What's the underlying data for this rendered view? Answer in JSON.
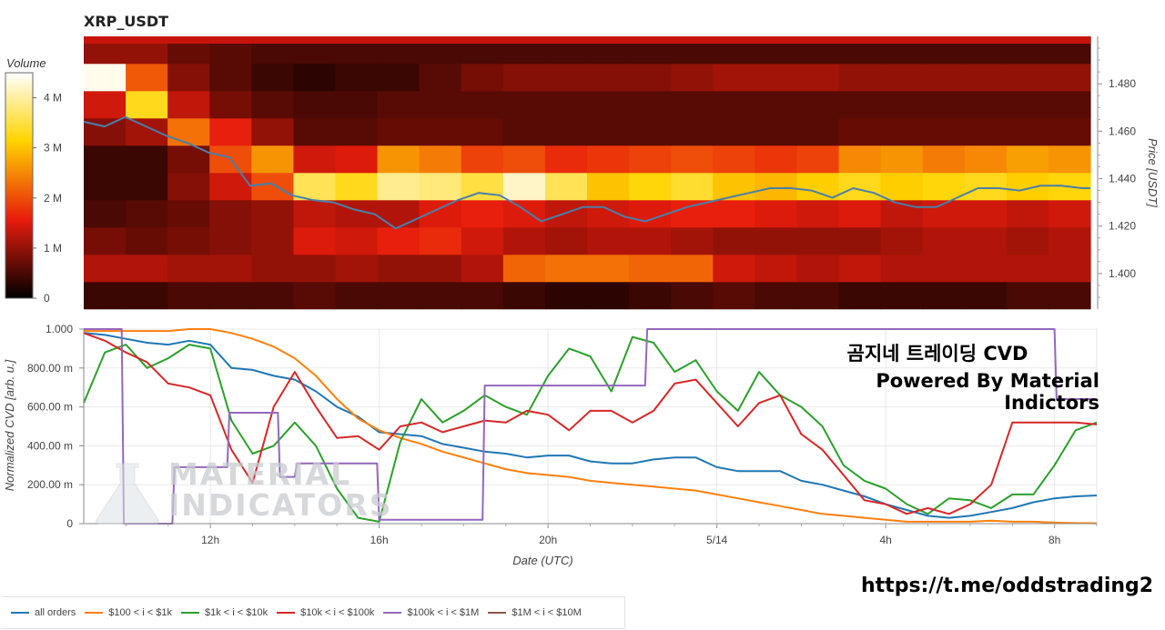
{
  "title": "XRP_USDT",
  "colorbar": {
    "title": "Volume",
    "ticks": [
      "0",
      "1 M",
      "2 M",
      "3 M",
      "4 M"
    ],
    "tick_values": [
      0,
      1000000,
      2000000,
      3000000,
      4000000
    ],
    "range": [
      0,
      4500000
    ]
  },
  "overlay": {
    "line1": "곰지네 트레이딩 CVD",
    "line2": "Powered By Material Indictors",
    "url": "https://t.me/oddstrading2"
  },
  "watermark": {
    "line1": "MATERIAL",
    "line2": "INDICATORS"
  },
  "colors": {
    "all_orders": "#1f77b4",
    "b100_1k": "#ff7f0e",
    "b1k_10k": "#2ca02c",
    "b10k_100k": "#d62728",
    "b100k_1m": "#9467bd",
    "b1m_10m": "#8c564b",
    "price_line": "#4a7fa8"
  },
  "chart_data": [
    {
      "type": "heatmap",
      "title": "XRP_USDT",
      "ylabel": "Price [USDT]",
      "yticks": [
        "1.400",
        "1.420",
        "1.440",
        "1.460",
        "1.480"
      ],
      "ytick_values": [
        1.4,
        1.42,
        1.44,
        1.46,
        1.48
      ],
      "ylim": [
        1.385,
        1.5
      ],
      "xlim_hours": [
        8.3,
        32.5
      ],
      "price_levels": [
        1.395,
        1.405,
        1.415,
        1.425,
        1.435,
        1.445,
        1.455,
        1.465,
        1.475,
        1.485
      ],
      "volume_profile_M": [
        [
          0.4,
          0.4,
          0.5,
          0.5,
          0.5,
          0.6,
          0.5,
          0.5,
          0.5,
          0.5,
          0.4,
          0.3,
          0.3,
          0.4,
          0.5,
          0.6,
          0.5,
          0.5,
          0.4,
          0.4,
          0.4,
          0.4,
          0.5,
          0.5
        ],
        [
          1.2,
          1.2,
          1.1,
          1.1,
          1.0,
          1.0,
          1.1,
          1.0,
          1.0,
          1.2,
          2.2,
          2.3,
          2.3,
          2.2,
          2.2,
          1.4,
          1.3,
          1.2,
          1.3,
          1.2,
          1.2,
          1.2,
          1.2,
          1.2
        ],
        [
          0.8,
          0.7,
          0.8,
          0.9,
          1.0,
          1.5,
          1.4,
          1.6,
          1.7,
          1.4,
          1.2,
          1.1,
          1.2,
          1.2,
          1.1,
          1.0,
          1.0,
          1.0,
          1.0,
          1.1,
          1.2,
          1.2,
          1.1,
          1.2
        ],
        [
          0.5,
          0.6,
          0.7,
          0.9,
          1.0,
          1.3,
          1.2,
          1.2,
          1.5,
          1.6,
          1.5,
          1.3,
          1.4,
          1.5,
          1.6,
          1.6,
          1.5,
          1.4,
          1.5,
          1.3,
          1.4,
          1.4,
          1.3,
          1.4
        ],
        [
          0.4,
          0.4,
          0.9,
          1.4,
          2.0,
          3.6,
          3.3,
          3.9,
          3.8,
          3.5,
          4.2,
          3.6,
          3.0,
          3.2,
          3.4,
          3.0,
          2.9,
          3.1,
          3.3,
          3.1,
          3.2,
          3.3,
          3.1,
          3.2
        ],
        [
          0.4,
          0.4,
          0.8,
          2.0,
          2.6,
          1.4,
          1.5,
          2.6,
          2.4,
          1.9,
          2.0,
          1.7,
          1.8,
          1.9,
          2.0,
          1.9,
          1.8,
          1.9,
          2.5,
          2.6,
          2.4,
          2.5,
          2.7,
          2.6
        ],
        [
          0.9,
          1.1,
          2.3,
          1.6,
          1.0,
          0.6,
          0.6,
          0.7,
          0.7,
          0.7,
          0.6,
          0.6,
          0.6,
          0.6,
          0.6,
          0.6,
          0.6,
          0.6,
          0.7,
          0.7,
          0.7,
          0.7,
          0.7,
          0.7
        ],
        [
          1.4,
          3.3,
          1.3,
          0.8,
          0.6,
          0.5,
          0.5,
          0.6,
          0.6,
          0.6,
          0.6,
          0.6,
          0.6,
          0.6,
          0.6,
          0.6,
          0.6,
          0.6,
          0.6,
          0.6,
          0.6,
          0.6,
          0.6,
          0.6
        ],
        [
          4.4,
          2.1,
          0.9,
          0.6,
          0.4,
          0.3,
          0.4,
          0.4,
          0.6,
          0.8,
          0.9,
          0.9,
          0.9,
          0.9,
          1.0,
          1.1,
          1.1,
          1.1,
          1.0,
          1.0,
          1.0,
          1.0,
          1.0,
          1.0
        ],
        [
          1.0,
          1.0,
          0.7,
          0.6,
          0.5,
          0.5,
          0.5,
          0.5,
          0.5,
          0.5,
          0.5,
          0.5,
          0.5,
          0.5,
          0.5,
          0.5,
          0.5,
          0.5,
          0.5,
          0.5,
          0.5,
          0.5,
          0.5,
          0.5
        ]
      ],
      "price_series": {
        "name": "",
        "x_hours": [
          8.3,
          8.8,
          9.3,
          9.8,
          10.3,
          10.8,
          11.3,
          11.8,
          12.3,
          12.8,
          13.3,
          13.8,
          14.3,
          14.8,
          15.3,
          15.8,
          16.3,
          16.8,
          17.3,
          17.8,
          18.3,
          18.8,
          19.3,
          19.8,
          20.3,
          20.8,
          21.3,
          21.8,
          22.3,
          22.8,
          23.3,
          23.8,
          24.3,
          24.8,
          25.3,
          25.8,
          26.3,
          26.8,
          27.3,
          27.8,
          28.3,
          28.8,
          29.3,
          29.8,
          30.3,
          30.8,
          31.3,
          31.8,
          32.3,
          32.5
        ],
        "values": [
          1.464,
          1.462,
          1.466,
          1.462,
          1.458,
          1.455,
          1.451,
          1.449,
          1.437,
          1.438,
          1.433,
          1.431,
          1.43,
          1.427,
          1.425,
          1.419,
          1.423,
          1.427,
          1.431,
          1.434,
          1.433,
          1.428,
          1.422,
          1.425,
          1.428,
          1.428,
          1.424,
          1.422,
          1.425,
          1.428,
          1.43,
          1.432,
          1.434,
          1.436,
          1.436,
          1.435,
          1.432,
          1.436,
          1.434,
          1.43,
          1.428,
          1.428,
          1.432,
          1.436,
          1.436,
          1.435,
          1.437,
          1.437,
          1.436,
          1.436
        ]
      }
    },
    {
      "type": "line",
      "xlabel": "Date (UTC)",
      "ylabel": "Normalized CVD [arb. u.]",
      "xticks": [
        "12h",
        "16h",
        "20h",
        "5/14",
        "4h",
        "8h"
      ],
      "xtick_hours": [
        12,
        16,
        20,
        24,
        28,
        32
      ],
      "xlim_hours": [
        9,
        33
      ],
      "yticks": [
        "0",
        "200.00 m",
        "400.00 m",
        "600.00 m",
        "800.00 m",
        "1.000"
      ],
      "ytick_values": [
        0,
        0.2,
        0.4,
        0.6,
        0.8,
        1.0
      ],
      "ylim": [
        0,
        1.0
      ],
      "grid": true,
      "legend_position": "bottom",
      "series": [
        {
          "name": "all orders",
          "x": [
            9,
            9.5,
            10,
            10.5,
            11,
            11.5,
            12,
            12.5,
            13,
            13.5,
            14,
            14.5,
            15,
            15.5,
            16,
            16.5,
            17,
            17.5,
            18,
            18.5,
            19,
            19.5,
            20,
            20.5,
            21,
            21.5,
            22,
            22.5,
            23,
            23.5,
            24,
            24.5,
            25,
            25.5,
            26,
            26.5,
            27,
            27.5,
            28,
            28.5,
            29,
            29.5,
            30,
            30.5,
            31,
            31.5,
            32,
            32.5,
            33
          ],
          "values": [
            0.98,
            0.97,
            0.95,
            0.93,
            0.92,
            0.94,
            0.92,
            0.8,
            0.79,
            0.76,
            0.74,
            0.68,
            0.6,
            0.55,
            0.47,
            0.46,
            0.45,
            0.41,
            0.39,
            0.37,
            0.36,
            0.34,
            0.35,
            0.35,
            0.32,
            0.31,
            0.31,
            0.33,
            0.34,
            0.34,
            0.29,
            0.27,
            0.27,
            0.27,
            0.22,
            0.2,
            0.17,
            0.14,
            0.1,
            0.07,
            0.04,
            0.03,
            0.04,
            0.06,
            0.08,
            0.11,
            0.13,
            0.14,
            0.145
          ]
        },
        {
          "name": "$100 < i < $1k",
          "x": [
            9,
            9.5,
            10,
            10.5,
            11,
            11.5,
            12,
            12.5,
            13,
            13.5,
            14,
            14.5,
            15,
            15.5,
            16,
            16.5,
            17,
            17.5,
            18,
            18.5,
            19,
            19.5,
            20,
            20.5,
            21,
            21.5,
            22,
            22.5,
            23,
            23.5,
            24,
            24.5,
            25,
            25.5,
            26,
            26.5,
            27,
            27.5,
            28,
            28.5,
            29,
            29.5,
            30,
            30.5,
            31,
            31.5,
            32,
            32.5,
            33
          ],
          "values": [
            0.99,
            0.99,
            0.99,
            0.99,
            0.99,
            1.0,
            1.0,
            0.98,
            0.95,
            0.91,
            0.85,
            0.76,
            0.64,
            0.54,
            0.48,
            0.44,
            0.41,
            0.37,
            0.34,
            0.31,
            0.28,
            0.26,
            0.25,
            0.24,
            0.22,
            0.21,
            0.2,
            0.19,
            0.18,
            0.17,
            0.15,
            0.13,
            0.11,
            0.09,
            0.07,
            0.05,
            0.04,
            0.03,
            0.02,
            0.01,
            0.01,
            0.01,
            0.01,
            0.015,
            0.01,
            0.01,
            0.005,
            0.003,
            0.002
          ]
        },
        {
          "name": "$1k < i < $10k",
          "x": [
            9,
            9.5,
            10,
            10.5,
            11,
            11.5,
            12,
            12.5,
            13,
            13.5,
            14,
            14.5,
            15,
            15.5,
            16,
            16.5,
            17,
            17.5,
            18,
            18.5,
            19,
            19.5,
            20,
            20.5,
            21,
            21.5,
            22,
            22.5,
            23,
            23.5,
            24,
            24.5,
            25,
            25.5,
            26,
            26.5,
            27,
            27.5,
            28,
            28.5,
            29,
            29.5,
            30,
            30.5,
            31,
            31.5,
            32,
            32.5,
            33
          ],
          "values": [
            0.62,
            0.88,
            0.92,
            0.8,
            0.85,
            0.92,
            0.9,
            0.53,
            0.36,
            0.4,
            0.52,
            0.4,
            0.18,
            0.03,
            0.01,
            0.42,
            0.64,
            0.52,
            0.58,
            0.66,
            0.6,
            0.56,
            0.76,
            0.9,
            0.86,
            0.68,
            0.96,
            0.93,
            0.78,
            0.84,
            0.68,
            0.58,
            0.78,
            0.66,
            0.6,
            0.5,
            0.3,
            0.22,
            0.18,
            0.1,
            0.05,
            0.13,
            0.12,
            0.08,
            0.15,
            0.15,
            0.3,
            0.48,
            0.52
          ]
        },
        {
          "name": "$10k < i < $100k",
          "x": [
            9,
            9.5,
            10,
            10.5,
            11,
            11.5,
            12,
            12.5,
            13,
            13.5,
            14,
            14.5,
            15,
            15.5,
            16,
            16.5,
            17,
            17.5,
            18,
            18.5,
            19,
            19.5,
            20,
            20.5,
            21,
            21.5,
            22,
            22.5,
            23,
            23.5,
            24,
            24.5,
            25,
            25.5,
            26,
            26.5,
            27,
            27.5,
            28,
            28.5,
            29,
            29.5,
            30,
            30.5,
            31,
            31.5,
            32,
            32.5,
            33
          ],
          "values": [
            0.98,
            0.94,
            0.88,
            0.83,
            0.72,
            0.7,
            0.66,
            0.38,
            0.21,
            0.6,
            0.78,
            0.6,
            0.44,
            0.45,
            0.38,
            0.5,
            0.52,
            0.47,
            0.5,
            0.53,
            0.52,
            0.58,
            0.56,
            0.48,
            0.58,
            0.58,
            0.52,
            0.58,
            0.72,
            0.74,
            0.62,
            0.5,
            0.62,
            0.66,
            0.46,
            0.38,
            0.25,
            0.12,
            0.1,
            0.05,
            0.08,
            0.05,
            0.1,
            0.2,
            0.52,
            0.52,
            0.52,
            0.52,
            0.51
          ]
        },
        {
          "name": "$100k < i < $1M",
          "x": [
            9,
            9.9,
            9.95,
            10.1,
            10.15,
            11.1,
            11.15,
            12.4,
            12.45,
            13.2,
            13.25,
            13.6,
            13.65,
            14.0,
            14.05,
            15.95,
            16.0,
            18.45,
            18.5,
            22.3,
            22.35,
            32.0,
            32.05,
            33
          ],
          "values": [
            1.0,
            1.0,
            0.0,
            0.0,
            0.0,
            0.0,
            0.29,
            0.29,
            0.57,
            0.57,
            0.57,
            0.57,
            0.24,
            0.24,
            0.31,
            0.31,
            0.02,
            0.02,
            0.71,
            0.71,
            1.0,
            1.0,
            0.64,
            0.64
          ]
        },
        {
          "name": "$1M < i < $10M",
          "x": [],
          "values": []
        }
      ]
    }
  ]
}
